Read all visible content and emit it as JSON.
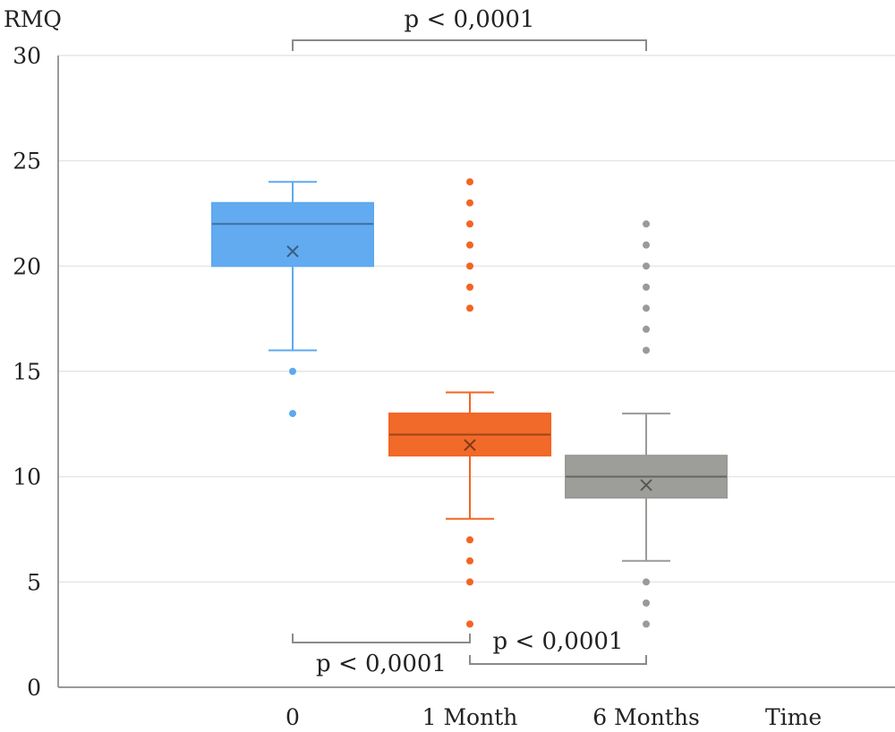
{
  "chart_data": {
    "type": "box",
    "ylabel": "RMQ",
    "xlabel": "Time",
    "categories": [
      "0",
      "1 Month",
      "6 Months"
    ],
    "ylim": [
      0,
      30
    ],
    "yticks": [
      "0",
      "5",
      "10",
      "15",
      "20",
      "25",
      "30"
    ],
    "grid": true,
    "series": [
      {
        "category": "0",
        "color": "#5ea8ef",
        "whisker_low": 16,
        "q1": 20,
        "median": 22,
        "q3": 23,
        "whisker_high": 24,
        "mean": 20.7,
        "outliers": [
          15,
          13
        ]
      },
      {
        "category": "1 Month",
        "color": "#f26522",
        "whisker_low": 8,
        "q1": 11,
        "median": 12,
        "q3": 13,
        "whisker_high": 14,
        "mean": 11.5,
        "outliers": [
          24,
          23,
          22,
          21,
          20,
          19,
          18,
          7,
          6,
          5,
          3
        ]
      },
      {
        "category": "6 Months",
        "color": "#9a9a97",
        "whisker_low": 6,
        "q1": 9,
        "median": 10,
        "q3": 11,
        "whisker_high": 13,
        "mean": 9.6,
        "outliers": [
          22,
          21,
          20,
          19,
          18,
          17,
          16,
          5,
          4,
          3
        ]
      }
    ],
    "annotations": [
      {
        "text": "p < 0,0001",
        "from": "0",
        "to": "6 Months",
        "placement": "top"
      },
      {
        "text": "p < 0,0001",
        "from": "0",
        "to": "1 Month",
        "placement": "bottom"
      },
      {
        "text": "p < 0,0001",
        "from": "1 Month",
        "to": "6 Months",
        "placement": "bottom"
      }
    ]
  }
}
